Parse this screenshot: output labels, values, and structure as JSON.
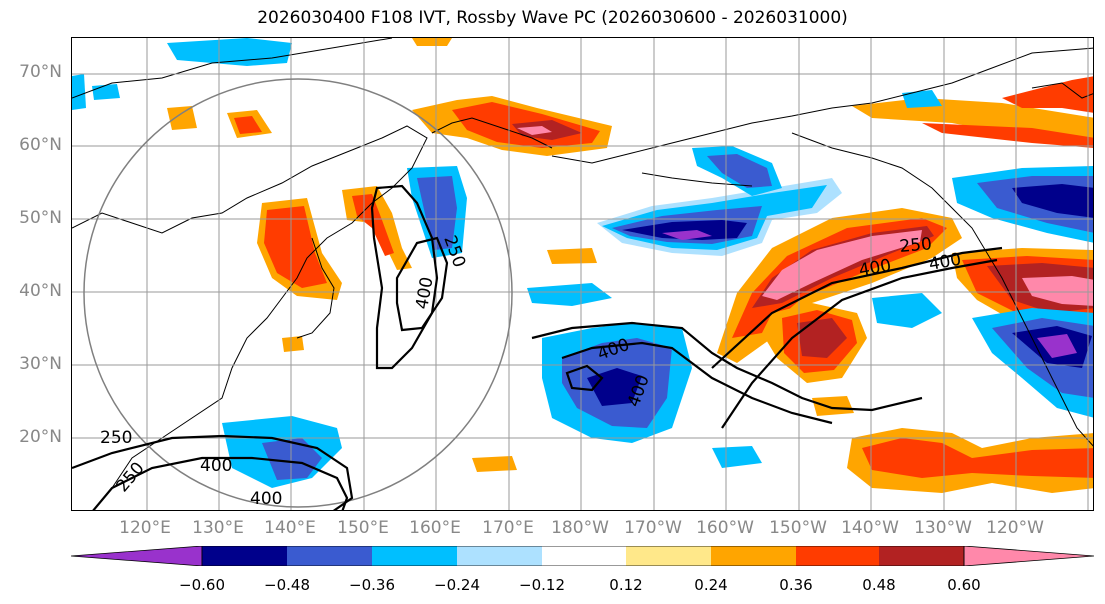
{
  "title": "2026030400 F108 IVT, Rossby Wave PC (2026030600 - 2026031000)",
  "latitude_labels": [
    "70°N",
    "60°N",
    "50°N",
    "40°N",
    "30°N",
    "20°N"
  ],
  "longitude_labels": [
    "120°E",
    "130°E",
    "140°E",
    "150°E",
    "160°E",
    "170°E",
    "180°W",
    "170°W",
    "160°W",
    "150°W",
    "140°W",
    "130°W",
    "120°W"
  ],
  "contour_labels": [
    "250",
    "400",
    "400",
    "400",
    "400",
    "250",
    "400",
    "250",
    "400",
    "250",
    "400"
  ],
  "colorbar": {
    "colors": [
      "#9932CC",
      "#00008B",
      "#3A5BD0",
      "#00BFFF",
      "#ADE1FF",
      "#FFFFFF",
      "#FFE88A",
      "#FFA500",
      "#FF3C00",
      "#B22222",
      "#FF88AA"
    ],
    "tick_labels": [
      "−0.60",
      "−0.48",
      "−0.36",
      "−0.24",
      "−0.12",
      "0.12",
      "0.24",
      "0.36",
      "0.48",
      "0.60"
    ]
  }
}
